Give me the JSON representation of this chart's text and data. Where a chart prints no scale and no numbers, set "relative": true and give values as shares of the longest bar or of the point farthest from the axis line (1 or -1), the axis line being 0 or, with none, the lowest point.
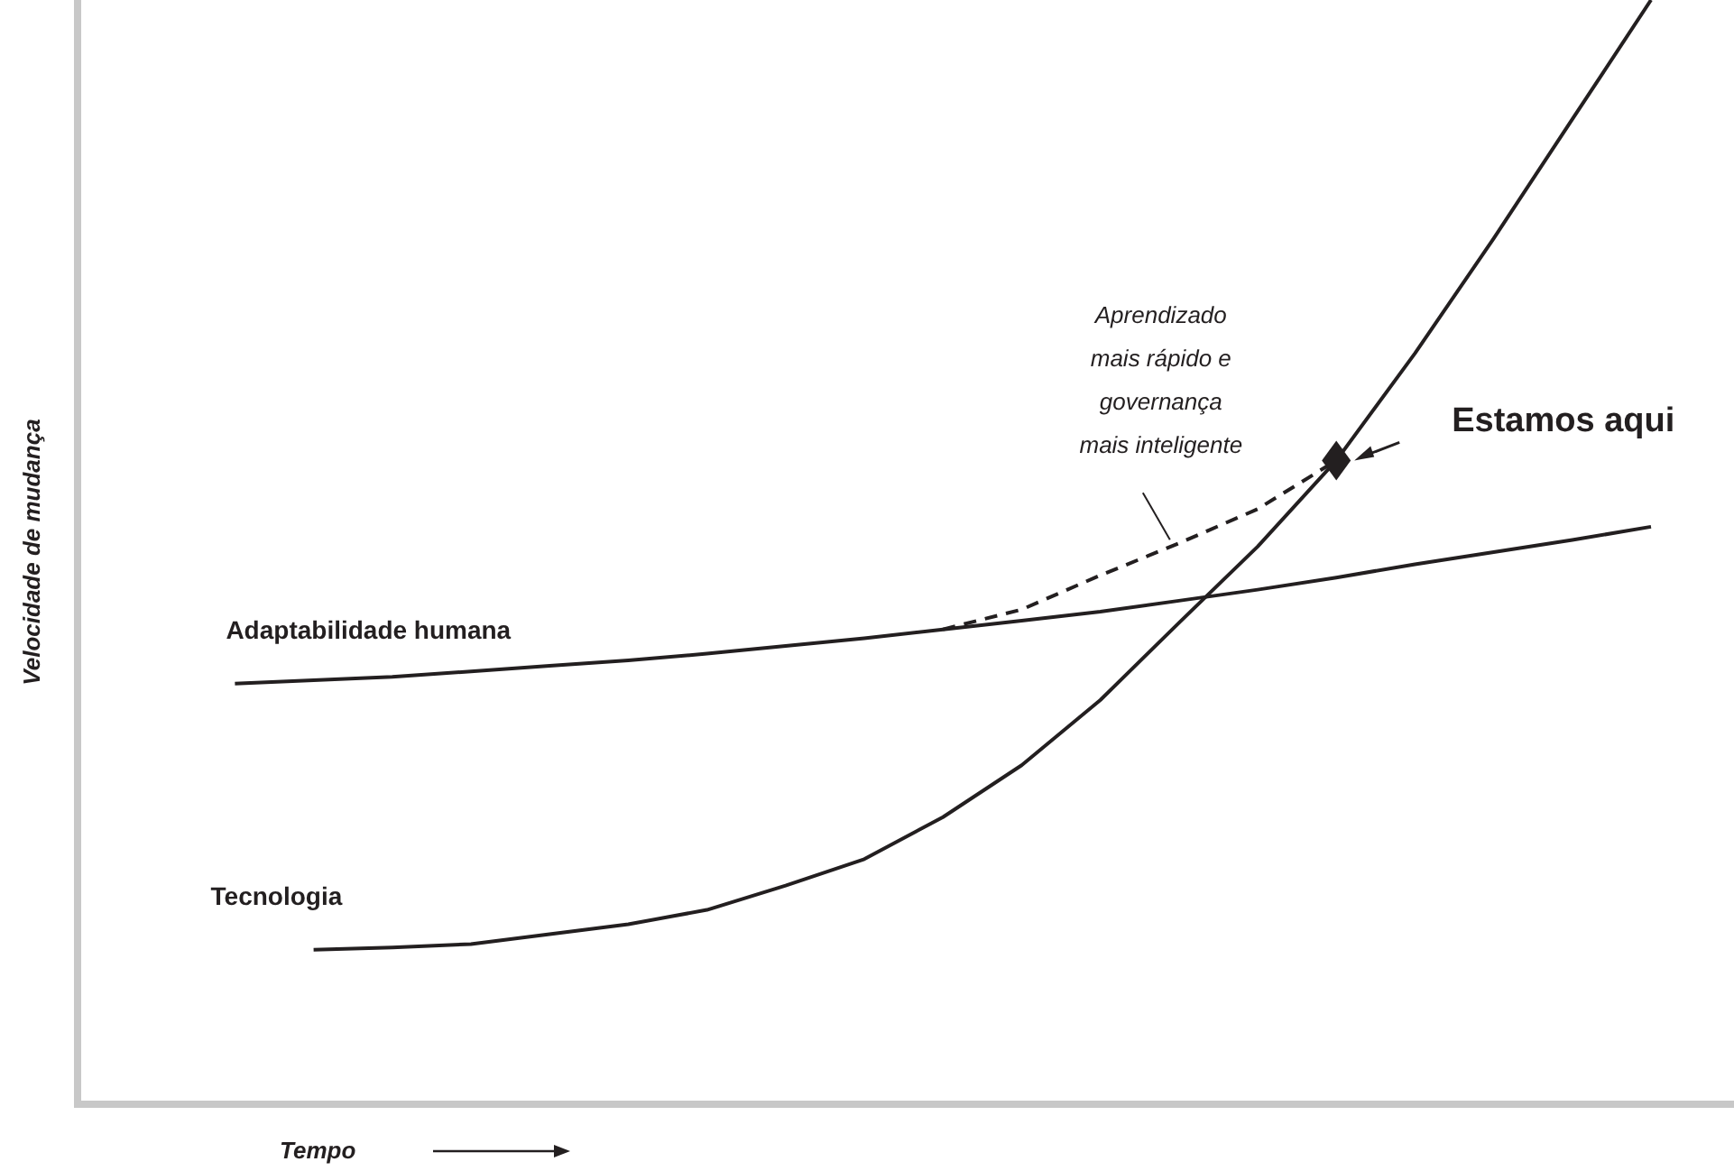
{
  "chart_data": {
    "type": "line",
    "relative": true,
    "xlabel": "Tempo",
    "ylabel": "Velocidade de mudança",
    "categories": [
      null,
      null,
      null,
      null,
      null,
      null,
      null,
      null,
      null,
      null,
      null,
      null,
      null,
      null,
      null,
      null,
      null,
      null,
      null,
      null,
      null
    ],
    "series": [
      {
        "name": "Adaptabilidade humana",
        "color": "#231f20",
        "values": [
          null,
          null,
          0.381,
          0.384,
          0.387,
          0.392,
          0.397,
          0.402,
          0.408,
          0.415,
          0.422,
          0.43,
          0.438,
          0.446,
          0.456,
          0.466,
          0.477,
          0.489,
          0.5,
          0.511,
          0.523
        ]
      },
      {
        "name": "Tecnologia",
        "color": "#231f20",
        "values": [
          null,
          null,
          null,
          0.14,
          0.142,
          0.145,
          0.154,
          0.163,
          0.176,
          0.198,
          0.222,
          0.26,
          0.307,
          0.366,
          0.436,
          0.505,
          0.583,
          0.68,
          0.784,
          0.892,
          1
        ]
      },
      {
        "color": "#231f20",
        "line_style": "dashed",
        "values": [
          null,
          null,
          null,
          null,
          null,
          null,
          null,
          null,
          null,
          null,
          null,
          0.43,
          0.448,
          0.479,
          0.508,
          0.539,
          0.583,
          null,
          null,
          null,
          null
        ]
      }
    ],
    "annotations": [
      "Estamos aqui",
      "Aprendizado mais rápido e governança mais inteligente"
    ]
  }
}
